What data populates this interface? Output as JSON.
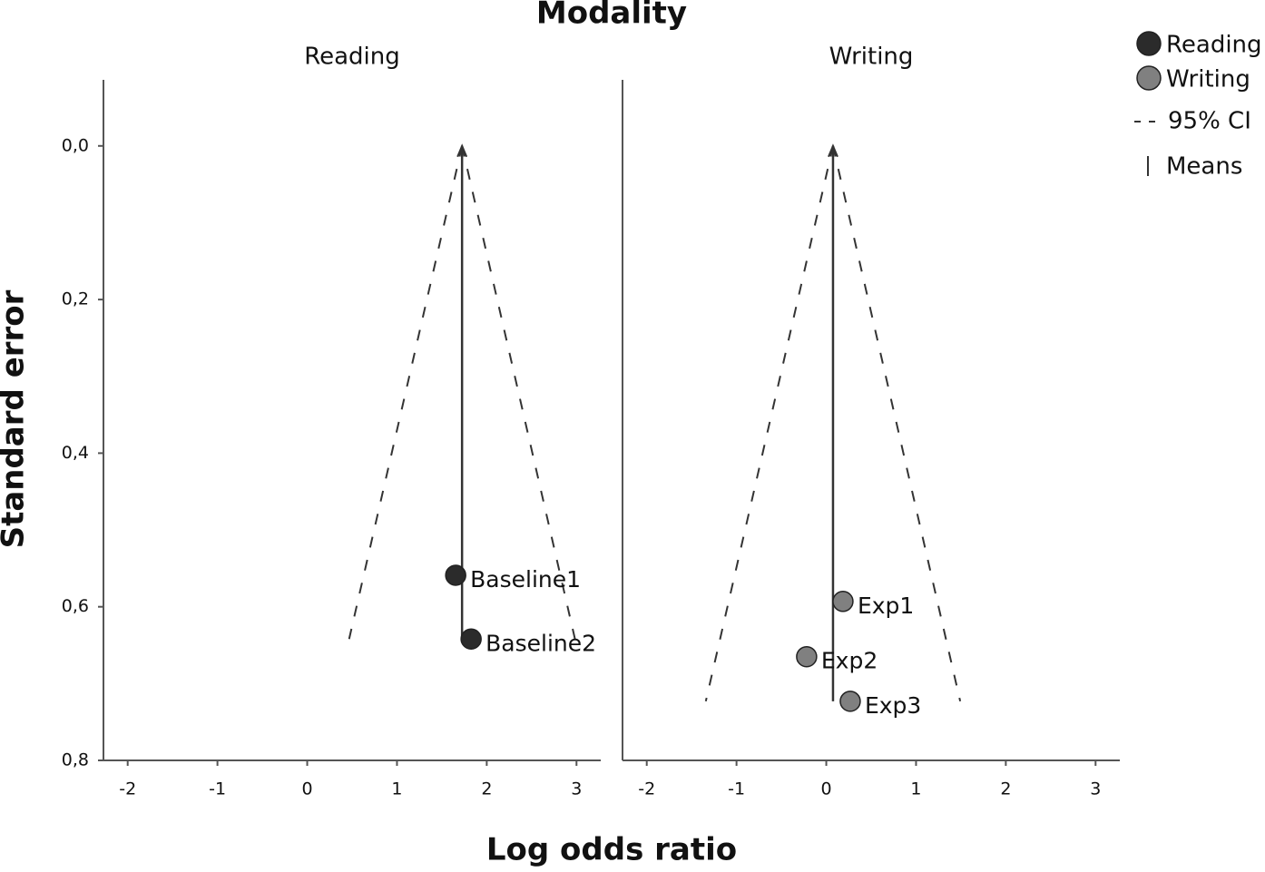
{
  "chart_data": {
    "type": "funnel",
    "title": "Modality",
    "xlabel": "Log odds ratio",
    "ylabel": "Standard error",
    "xlim": [
      -2.27,
      3.27
    ],
    "xticks": [
      -2,
      -1,
      0,
      1,
      2,
      3
    ],
    "ylim": [
      -0.086,
      0.8
    ],
    "y_inverted": true,
    "yticks": [
      {
        "value": 0,
        "label": "0,0"
      },
      {
        "value": 0.2,
        "label": "0,2"
      },
      {
        "value": 0.4,
        "label": "0,4"
      },
      {
        "value": 0.6,
        "label": "0,6"
      },
      {
        "value": 0.8,
        "label": "0,8"
      }
    ],
    "series": [
      {
        "name": "Reading",
        "color": "#2b2b2b"
      },
      {
        "name": "Writing",
        "color": "#808080"
      }
    ],
    "legend_extra": [
      "95% CI",
      "Means"
    ],
    "legend_position": "right",
    "panels": [
      {
        "title": "Reading",
        "mean": 1.725,
        "max_se": 0.642,
        "ci_bottom": [
          0.467,
          2.983
        ],
        "labels": [
          "Baseline1",
          "Baseline2"
        ],
        "x": [
          1.654,
          1.826
        ],
        "se": [
          0.559,
          0.642
        ]
      },
      {
        "title": "Writing",
        "mean": 0.075,
        "max_se": 0.723,
        "ci_bottom": [
          -1.342,
          1.492
        ],
        "labels": [
          "Exp1",
          "Exp2",
          "Exp3"
        ],
        "x": [
          0.186,
          -0.219,
          0.267
        ],
        "se": [
          0.593,
          0.665,
          0.723
        ]
      }
    ]
  }
}
